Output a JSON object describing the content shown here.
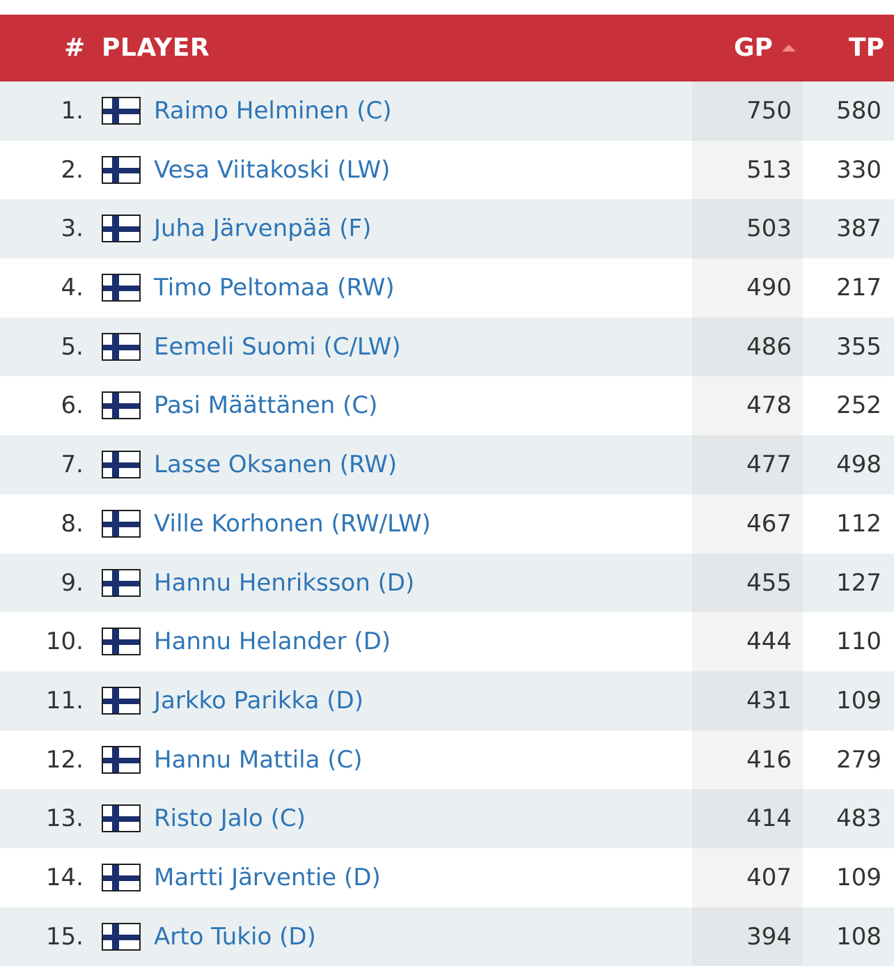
{
  "header": {
    "num": "#",
    "player": "PLAYER",
    "gp": "GP",
    "tp": "TP"
  },
  "colors": {
    "header_bg": "#c8303a",
    "link": "#2e75b6",
    "row_alt": "#eaf0f2",
    "sort_arrow": "#f08a8a"
  },
  "flag_icon": "finland-flag-icon",
  "rows": [
    {
      "rank": "1.",
      "name": "Raimo Helminen (C)",
      "gp": "750",
      "tp": "580"
    },
    {
      "rank": "2.",
      "name": "Vesa Viitakoski (LW)",
      "gp": "513",
      "tp": "330"
    },
    {
      "rank": "3.",
      "name": "Juha Järvenpää (F)",
      "gp": "503",
      "tp": "387"
    },
    {
      "rank": "4.",
      "name": "Timo Peltomaa (RW)",
      "gp": "490",
      "tp": "217"
    },
    {
      "rank": "5.",
      "name": "Eemeli Suomi (C/LW)",
      "gp": "486",
      "tp": "355"
    },
    {
      "rank": "6.",
      "name": "Pasi Määttänen (C)",
      "gp": "478",
      "tp": "252"
    },
    {
      "rank": "7.",
      "name": "Lasse Oksanen (RW)",
      "gp": "477",
      "tp": "498"
    },
    {
      "rank": "8.",
      "name": "Ville Korhonen (RW/LW)",
      "gp": "467",
      "tp": "112"
    },
    {
      "rank": "9.",
      "name": "Hannu Henriksson (D)",
      "gp": "455",
      "tp": "127"
    },
    {
      "rank": "10.",
      "name": "Hannu Helander (D)",
      "gp": "444",
      "tp": "110"
    },
    {
      "rank": "11.",
      "name": "Jarkko Parikka (D)",
      "gp": "431",
      "tp": "109"
    },
    {
      "rank": "12.",
      "name": "Hannu Mattila (C)",
      "gp": "416",
      "tp": "279"
    },
    {
      "rank": "13.",
      "name": "Risto Jalo (C)",
      "gp": "414",
      "tp": "483"
    },
    {
      "rank": "14.",
      "name": "Martti Järventie (D)",
      "gp": "407",
      "tp": "109"
    },
    {
      "rank": "15.",
      "name": "Arto Tukio (D)",
      "gp": "394",
      "tp": "108"
    }
  ]
}
